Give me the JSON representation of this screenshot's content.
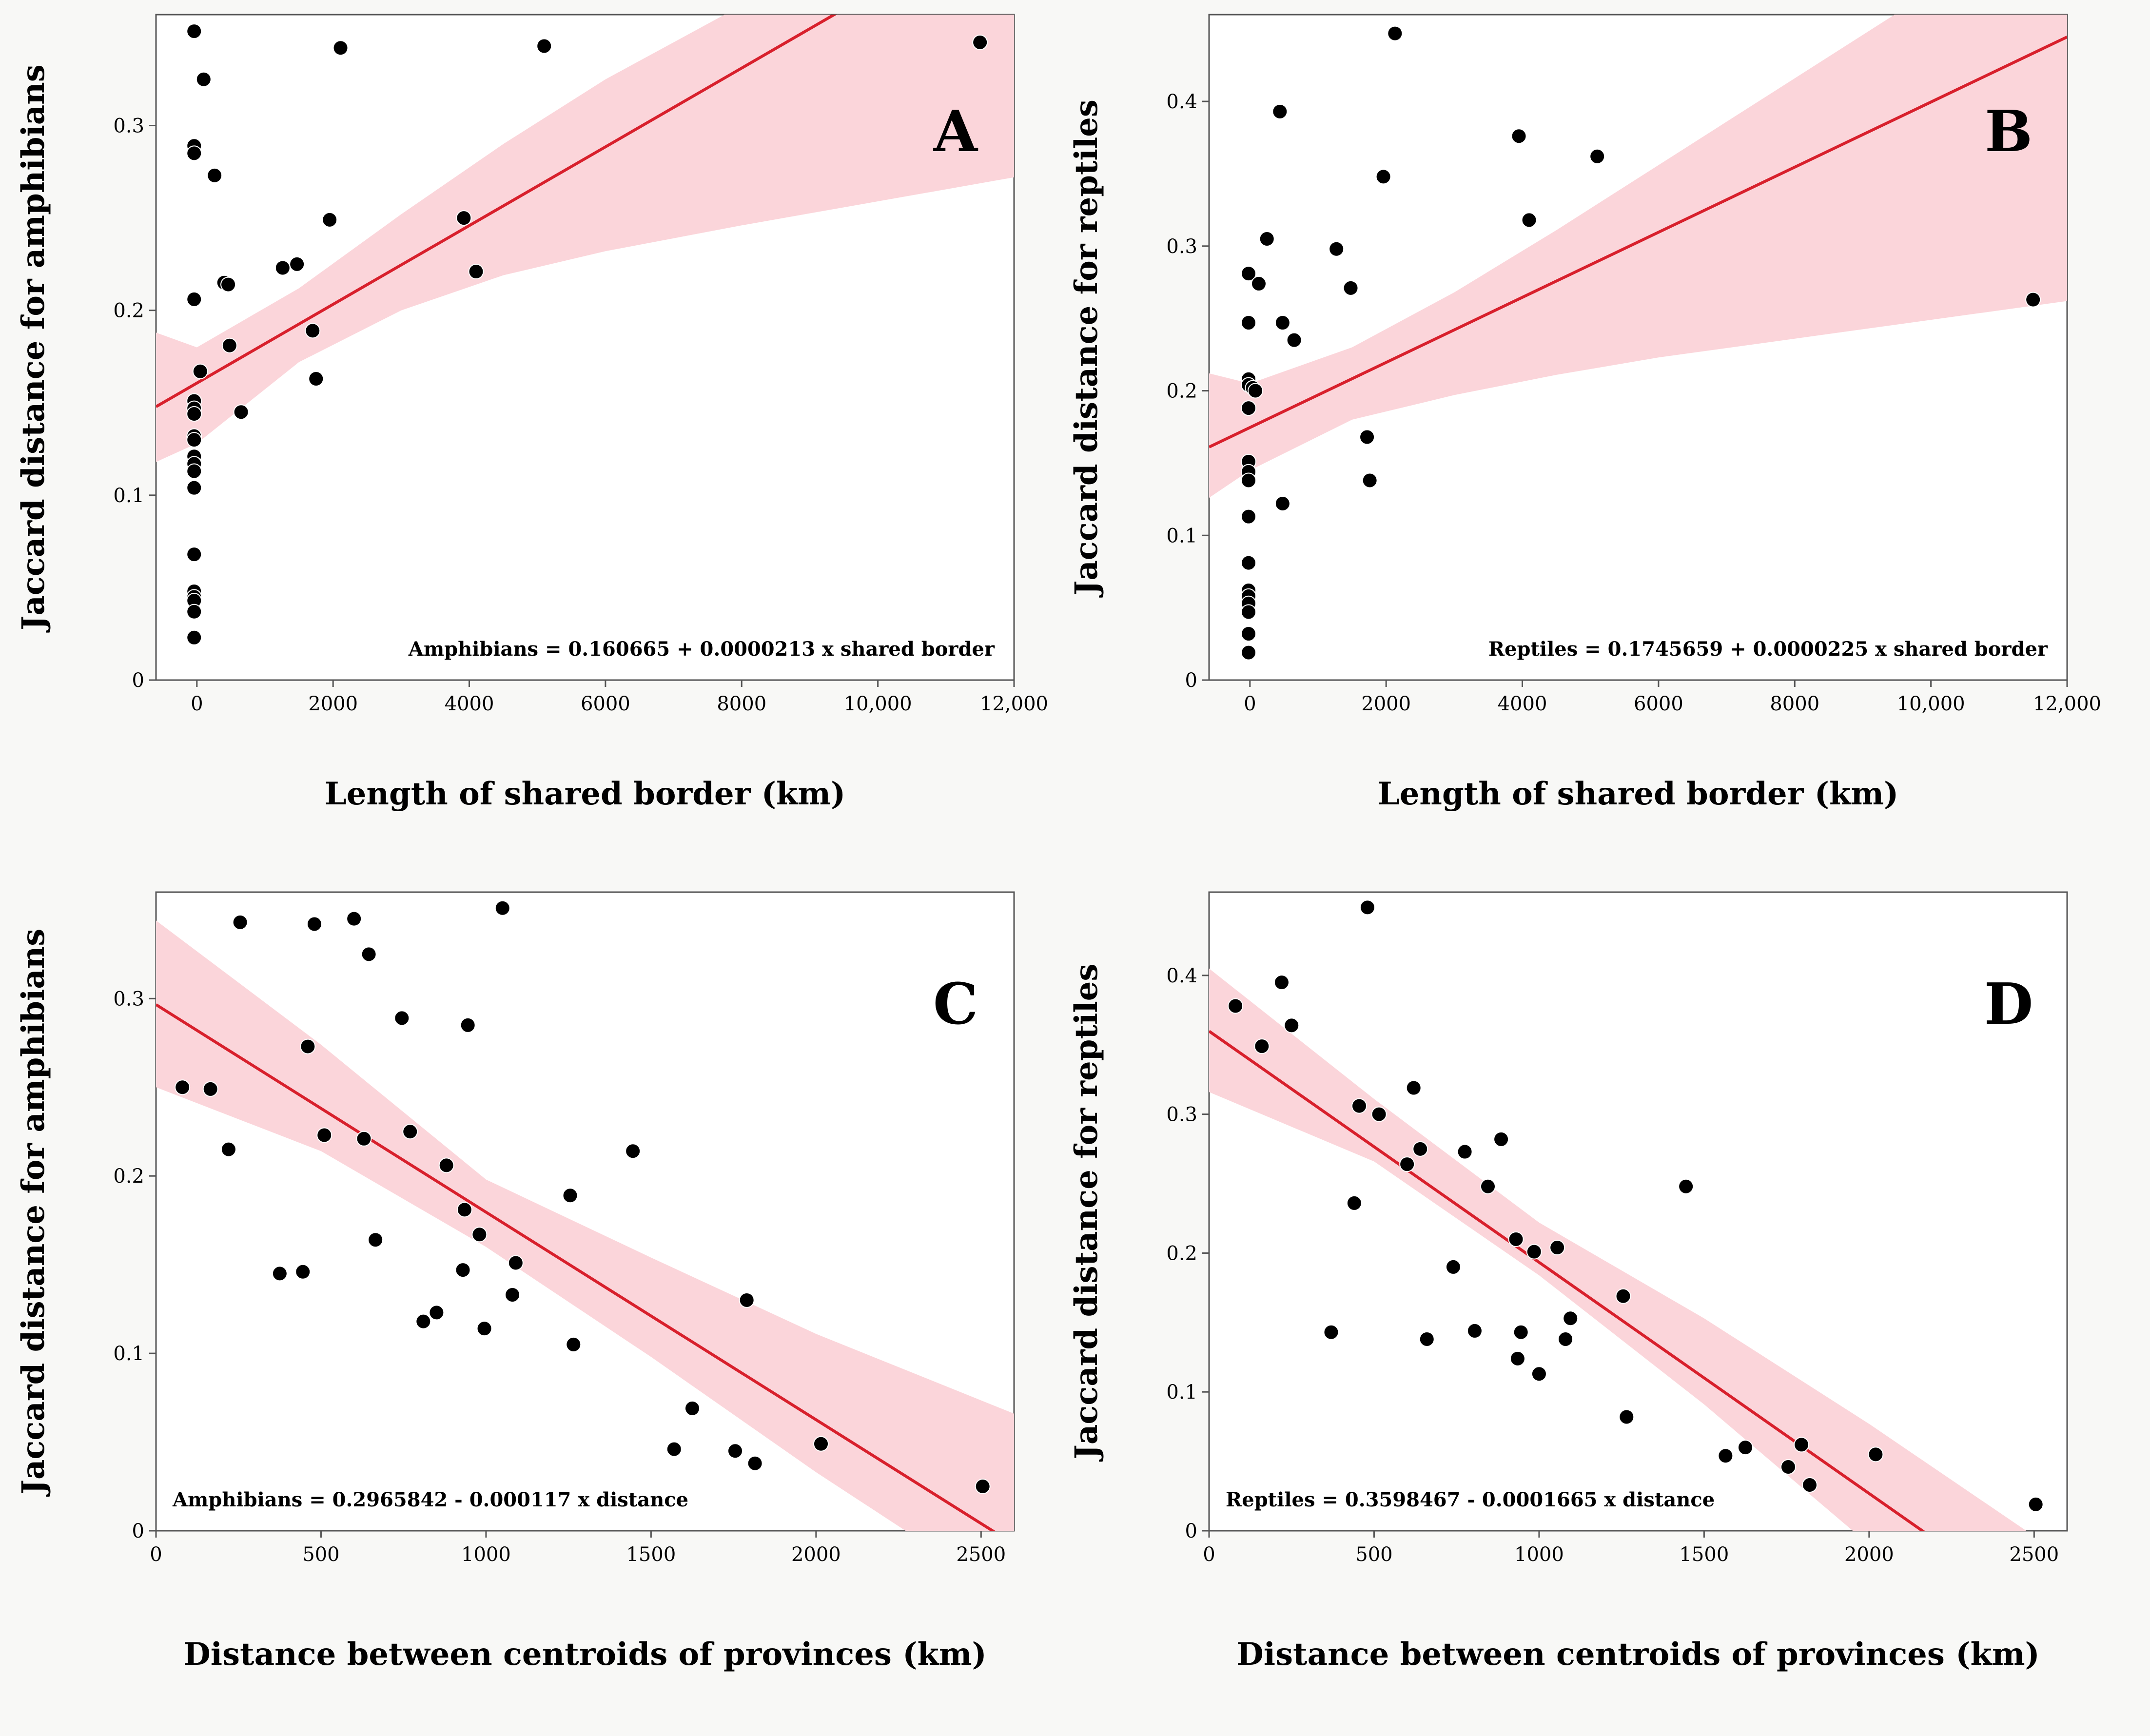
{
  "colors": {
    "band": "#fbd5da",
    "line": "#d8202c",
    "point": "#000000",
    "frame": "#555555",
    "background": "#f8f8f6"
  },
  "chart_data": [
    {
      "type": "scatter",
      "panel": "A",
      "xlabel": "Length of shared border (km)",
      "ylabel": "Jaccard distance for amphibians",
      "xlim": [
        -600,
        12000
      ],
      "ylim": [
        0,
        0.36
      ],
      "x_ticks": [
        0,
        2000,
        4000,
        6000,
        8000,
        10000,
        12000
      ],
      "x_tick_labels": [
        "0",
        "2000",
        "4000",
        "6000",
        "8000",
        "10,000",
        "12,000"
      ],
      "y_ticks": [
        0,
        0.1,
        0.2,
        0.3
      ],
      "y_tick_labels": [
        "0",
        "0.1",
        "0.2",
        "0.3"
      ],
      "equation": "Amphibians = 0.160665 + 0.0000213 x shared border",
      "equation_position": "bottom-right",
      "fit": {
        "intercept": 0.160665,
        "slope": 2.13e-05
      },
      "band_upper": [
        [
          -600,
          0.188
        ],
        [
          0,
          0.18
        ],
        [
          1500,
          0.212
        ],
        [
          3000,
          0.252
        ],
        [
          4500,
          0.29
        ],
        [
          6000,
          0.325
        ],
        [
          8000,
          0.365
        ],
        [
          10000,
          0.4
        ],
        [
          12000,
          0.44
        ]
      ],
      "band_lower": [
        [
          -600,
          0.118
        ],
        [
          0,
          0.128
        ],
        [
          1500,
          0.172
        ],
        [
          3000,
          0.2
        ],
        [
          4500,
          0.219
        ],
        [
          6000,
          0.232
        ],
        [
          8000,
          0.246
        ],
        [
          10000,
          0.259
        ],
        [
          12000,
          0.272
        ]
      ],
      "points": [
        [
          -40,
          0.351
        ],
        [
          -40,
          0.289
        ],
        [
          -40,
          0.285
        ],
        [
          100,
          0.325
        ],
        [
          260,
          0.273
        ],
        [
          -40,
          0.206
        ],
        [
          400,
          0.215
        ],
        [
          460,
          0.214
        ],
        [
          480,
          0.181
        ],
        [
          50,
          0.167
        ],
        [
          -40,
          0.151
        ],
        [
          -40,
          0.147
        ],
        [
          -40,
          0.144
        ],
        [
          -40,
          0.132
        ],
        [
          -40,
          0.13
        ],
        [
          -40,
          0.121
        ],
        [
          -40,
          0.117
        ],
        [
          -40,
          0.113
        ],
        [
          -40,
          0.104
        ],
        [
          650,
          0.145
        ],
        [
          -40,
          0.068
        ],
        [
          -40,
          0.048
        ],
        [
          -40,
          0.045
        ],
        [
          -40,
          0.043
        ],
        [
          -40,
          0.037
        ],
        [
          -40,
          0.023
        ],
        [
          1260,
          0.223
        ],
        [
          1470,
          0.225
        ],
        [
          1700,
          0.189
        ],
        [
          1750,
          0.163
        ],
        [
          1950,
          0.249
        ],
        [
          2110,
          0.342
        ],
        [
          3920,
          0.25
        ],
        [
          4100,
          0.221
        ],
        [
          5100,
          0.343
        ],
        [
          11500,
          0.345
        ]
      ]
    },
    {
      "type": "scatter",
      "panel": "B",
      "xlabel": "Length of shared border (km)",
      "ylabel": "Jaccard distance for reptiles",
      "xlim": [
        -600,
        12000
      ],
      "ylim": [
        0,
        0.46
      ],
      "x_ticks": [
        0,
        2000,
        4000,
        6000,
        8000,
        10000,
        12000
      ],
      "x_tick_labels": [
        "0",
        "2000",
        "4000",
        "6000",
        "8000",
        "10,000",
        "12,000"
      ],
      "y_ticks": [
        0,
        0.1,
        0.2,
        0.3,
        0.4
      ],
      "y_tick_labels": [
        "0",
        "0.1",
        "0.2",
        "0.3",
        "0.4"
      ],
      "equation": "Reptiles = 0.1745659 + 0.0000225 x shared border",
      "equation_position": "bottom-right",
      "fit": {
        "intercept": 0.1745659,
        "slope": 2.25e-05
      },
      "band_upper": [
        [
          -600,
          0.212
        ],
        [
          0,
          0.205
        ],
        [
          1500,
          0.23
        ],
        [
          3000,
          0.268
        ],
        [
          4500,
          0.311
        ],
        [
          6000,
          0.356
        ],
        [
          8000,
          0.416
        ],
        [
          10000,
          0.476
        ],
        [
          12000,
          0.536
        ]
      ],
      "band_lower": [
        [
          -600,
          0.126
        ],
        [
          0,
          0.145
        ],
        [
          1500,
          0.18
        ],
        [
          3000,
          0.197
        ],
        [
          4500,
          0.211
        ],
        [
          6000,
          0.223
        ],
        [
          8000,
          0.236
        ],
        [
          10000,
          0.249
        ],
        [
          12000,
          0.262
        ]
      ],
      "points": [
        [
          2130,
          0.447
        ],
        [
          440,
          0.393
        ],
        [
          3950,
          0.376
        ],
        [
          5100,
          0.362
        ],
        [
          1960,
          0.348
        ],
        [
          4100,
          0.318
        ],
        [
          250,
          0.305
        ],
        [
          1270,
          0.298
        ],
        [
          -20,
          0.281
        ],
        [
          130,
          0.274
        ],
        [
          1480,
          0.271
        ],
        [
          -20,
          0.247
        ],
        [
          480,
          0.247
        ],
        [
          650,
          0.235
        ],
        [
          -20,
          0.208
        ],
        [
          -20,
          0.204
        ],
        [
          40,
          0.202
        ],
        [
          80,
          0.2
        ],
        [
          -20,
          0.188
        ],
        [
          1720,
          0.168
        ],
        [
          -20,
          0.151
        ],
        [
          -20,
          0.144
        ],
        [
          -20,
          0.138
        ],
        [
          1760,
          0.138
        ],
        [
          480,
          0.122
        ],
        [
          -20,
          0.113
        ],
        [
          -20,
          0.081
        ],
        [
          -20,
          0.062
        ],
        [
          -20,
          0.058
        ],
        [
          -20,
          0.053
        ],
        [
          -20,
          0.047
        ],
        [
          -20,
          0.032
        ],
        [
          -20,
          0.019
        ],
        [
          11500,
          0.263
        ]
      ]
    },
    {
      "type": "scatter",
      "panel": "C",
      "xlabel": "Distance between centroids of provinces (km)",
      "ylabel": "Jaccard distance for amphibians",
      "xlim": [
        0,
        2600
      ],
      "ylim": [
        0,
        0.36
      ],
      "x_ticks": [
        0,
        500,
        1000,
        1500,
        2000,
        2500
      ],
      "x_tick_labels": [
        "0",
        "500",
        "1000",
        "1500",
        "2000",
        "2500"
      ],
      "y_ticks": [
        0,
        0.1,
        0.2,
        0.3
      ],
      "y_tick_labels": [
        "0",
        "0.1",
        "0.2",
        "0.3"
      ],
      "equation": "Amphibians = 0.2965842 - 0.000117 x distance",
      "equation_position": "bottom-left",
      "fit": {
        "intercept": 0.2965842,
        "slope": -0.000117
      },
      "band_upper": [
        [
          0,
          0.344
        ],
        [
          500,
          0.274
        ],
        [
          1000,
          0.198
        ],
        [
          1500,
          0.154
        ],
        [
          2000,
          0.111
        ],
        [
          2600,
          0.066
        ]
      ],
      "band_lower": [
        [
          0,
          0.25
        ],
        [
          500,
          0.214
        ],
        [
          1000,
          0.16
        ],
        [
          1500,
          0.098
        ],
        [
          2000,
          0.033
        ],
        [
          2600,
          -0.04
        ]
      ],
      "points": [
        [
          80,
          0.25
        ],
        [
          165,
          0.249
        ],
        [
          220,
          0.215
        ],
        [
          255,
          0.343
        ],
        [
          375,
          0.145
        ],
        [
          445,
          0.146
        ],
        [
          460,
          0.273
        ],
        [
          480,
          0.342
        ],
        [
          510,
          0.223
        ],
        [
          600,
          0.345
        ],
        [
          630,
          0.221
        ],
        [
          645,
          0.325
        ],
        [
          665,
          0.164
        ],
        [
          745,
          0.289
        ],
        [
          770,
          0.225
        ],
        [
          810,
          0.118
        ],
        [
          850,
          0.123
        ],
        [
          880,
          0.206
        ],
        [
          930,
          0.147
        ],
        [
          935,
          0.181
        ],
        [
          945,
          0.285
        ],
        [
          980,
          0.167
        ],
        [
          995,
          0.114
        ],
        [
          1050,
          0.351
        ],
        [
          1080,
          0.133
        ],
        [
          1090,
          0.151
        ],
        [
          1255,
          0.189
        ],
        [
          1265,
          0.105
        ],
        [
          1445,
          0.214
        ],
        [
          1570,
          0.046
        ],
        [
          1625,
          0.069
        ],
        [
          1755,
          0.045
        ],
        [
          1790,
          0.13
        ],
        [
          1815,
          0.038
        ],
        [
          2015,
          0.049
        ],
        [
          2505,
          0.025
        ]
      ]
    },
    {
      "type": "scatter",
      "panel": "D",
      "xlabel": "Distance between centroids of provinces (km)",
      "ylabel": "Jaccard distance for reptiles",
      "xlim": [
        0,
        2600
      ],
      "ylim": [
        0,
        0.46
      ],
      "x_ticks": [
        0,
        500,
        1000,
        1500,
        2000,
        2500
      ],
      "x_tick_labels": [
        "0",
        "500",
        "1000",
        "1500",
        "2000",
        "2500"
      ],
      "y_ticks": [
        0,
        0.1,
        0.2,
        0.3,
        0.4
      ],
      "y_tick_labels": [
        "0",
        "0.1",
        "0.2",
        "0.3",
        "0.4"
      ],
      "equation": "Reptiles = 0.3598467 - 0.0001665 x distance",
      "equation_position": "bottom-left",
      "fit": {
        "intercept": 0.3598467,
        "slope": -0.0001665
      },
      "band_upper": [
        [
          0,
          0.405
        ],
        [
          500,
          0.311
        ],
        [
          1000,
          0.222
        ],
        [
          1500,
          0.153
        ],
        [
          2000,
          0.077
        ],
        [
          2600,
          -0.02
        ]
      ],
      "band_lower": [
        [
          0,
          0.316
        ],
        [
          500,
          0.266
        ],
        [
          1000,
          0.184
        ],
        [
          1500,
          0.091
        ],
        [
          2000,
          -0.01
        ],
        [
          2600,
          -0.12
        ]
      ],
      "points": [
        [
          80,
          0.378
        ],
        [
          160,
          0.349
        ],
        [
          220,
          0.395
        ],
        [
          250,
          0.364
        ],
        [
          370,
          0.143
        ],
        [
          440,
          0.236
        ],
        [
          455,
          0.306
        ],
        [
          480,
          0.449
        ],
        [
          515,
          0.3
        ],
        [
          600,
          0.264
        ],
        [
          620,
          0.319
        ],
        [
          640,
          0.275
        ],
        [
          660,
          0.138
        ],
        [
          740,
          0.19
        ],
        [
          775,
          0.273
        ],
        [
          805,
          0.144
        ],
        [
          845,
          0.248
        ],
        [
          885,
          0.282
        ],
        [
          930,
          0.21
        ],
        [
          935,
          0.124
        ],
        [
          945,
          0.143
        ],
        [
          985,
          0.201
        ],
        [
          1000,
          0.113
        ],
        [
          1055,
          0.204
        ],
        [
          1080,
          0.138
        ],
        [
          1095,
          0.153
        ],
        [
          1255,
          0.169
        ],
        [
          1265,
          0.082
        ],
        [
          1445,
          0.248
        ],
        [
          1565,
          0.054
        ],
        [
          1625,
          0.06
        ],
        [
          1755,
          0.046
        ],
        [
          1795,
          0.062
        ],
        [
          1820,
          0.033
        ],
        [
          2020,
          0.055
        ],
        [
          2505,
          0.019
        ]
      ]
    }
  ]
}
